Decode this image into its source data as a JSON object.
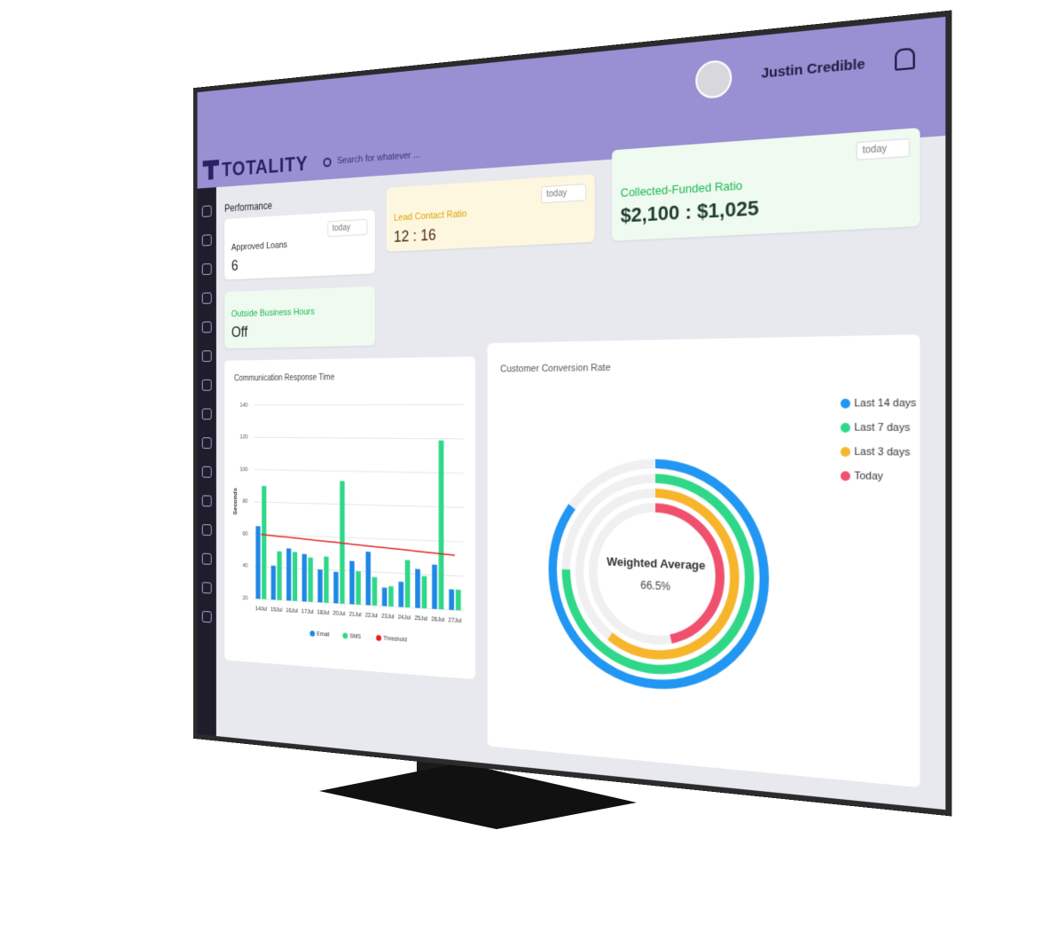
{
  "header": {
    "brand": "TOTALITY",
    "search_placeholder": "Search for whatever ...",
    "user_name": "Justin Credible"
  },
  "performance": {
    "title": "Performance"
  },
  "cards": [
    {
      "label": "Approved Loans",
      "value": "6",
      "filter": "today"
    },
    {
      "label": "Lead Contact Ratio",
      "value": "12 : 16",
      "filter": "today"
    },
    {
      "label": "Collected-Funded Ratio",
      "value": "$2,100 : $1,025",
      "filter": "today"
    },
    {
      "label": "Outside Business Hours",
      "value": "Off"
    }
  ],
  "chart_data": [
    {
      "type": "bar",
      "title": "Communication Response Time",
      "y_label": "Seconds",
      "categories": [
        "14Jul",
        "15Jul",
        "16Jul",
        "17Jul",
        "18Jul",
        "20Jul",
        "21Jul",
        "22Jul",
        "23Jul",
        "24Jul",
        "25Jul",
        "26Jul",
        "27Jul"
      ],
      "series": [
        {
          "name": "Email",
          "color": "#1e88e5",
          "values": [
            65,
            41,
            52,
            49,
            40,
            39,
            46,
            52,
            31,
            35,
            43,
            46,
            32
          ]
        },
        {
          "name": "SMS",
          "color": "#2fd889",
          "values": [
            90,
            50,
            50,
            47,
            48,
            94,
            40,
            37,
            32,
            48,
            39,
            119,
            32
          ]
        },
        {
          "name": "Threshold",
          "color": "#e02020",
          "style": "line",
          "values": [
            60,
            59.3,
            58.7,
            58,
            57.3,
            56.7,
            56,
            55.3,
            54.7,
            54,
            53.3,
            52.7,
            52
          ]
        }
      ],
      "ylim": [
        20,
        140
      ],
      "yticks": [
        20,
        40,
        60,
        80,
        100,
        120,
        140
      ],
      "grid": true
    },
    {
      "type": "radial",
      "title": "Customer Conversion Rate",
      "center_label": "Weighted Average",
      "center_value": "66.5%",
      "categories": [
        "Last 14 days",
        "Last 7 days",
        "Last 3 days",
        "Today"
      ],
      "values": [
        85,
        75,
        60,
        46
      ],
      "colors": [
        "#2196f3",
        "#2fd889",
        "#f7b52c",
        "#f0506e"
      ],
      "max": 100
    }
  ]
}
